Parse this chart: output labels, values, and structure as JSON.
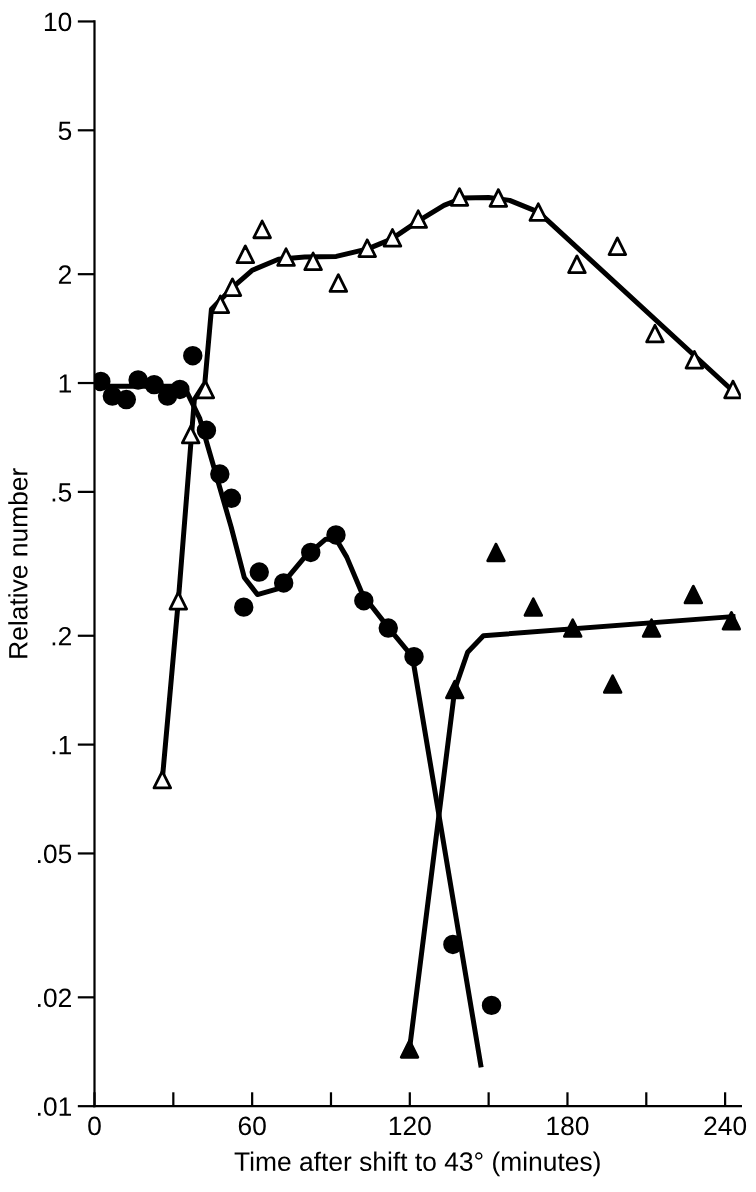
{
  "chart_data": {
    "type": "scatter",
    "xlabel": "Time after shift to 43° (minutes)",
    "ylabel": "Relative number",
    "log": "y",
    "grid": false,
    "xlim": [
      0,
      246
    ],
    "ylim": [
      0.01,
      10
    ],
    "xticks": [
      0,
      {
        "value": 30,
        "label": null
      },
      60,
      {
        "value": 90,
        "label": null
      },
      120,
      {
        "value": 150,
        "label": null
      },
      180,
      {
        "value": 210,
        "label": null
      },
      240
    ],
    "yticks": [
      {
        "value": 0.01,
        "label": ".01"
      },
      {
        "value": 0.02,
        "label": ".02"
      },
      {
        "value": 0.05,
        "label": ".05"
      },
      {
        "value": 0.1,
        "label": ".1"
      },
      {
        "value": 0.2,
        "label": ".2"
      },
      {
        "value": 0.5,
        "label": ".5"
      },
      1,
      2,
      5,
      10
    ],
    "series": [
      {
        "marker": "triangle",
        "color": "#ffffff",
        "x": [
          25.8,
          31.9,
          36.6,
          42.2,
          47.9,
          52.5,
          57.4,
          63.8,
          72.9,
          83.2,
          92.8,
          103.8,
          113.4,
          123.2,
          138.9,
          153.7,
          168.9,
          183.6,
          199,
          213.3,
          228.3,
          243
        ],
        "values": [
          0.08,
          0.25,
          0.72,
          0.96,
          1.65,
          1.84,
          2.27,
          2.66,
          2.23,
          2.17,
          1.89,
          2.36,
          2.52,
          2.84,
          3.27,
          3.25,
          2.97,
          2.13,
          2.39,
          1.37,
          1.16,
          0.96
        ]
      },
      {
        "marker": "circle",
        "color": "#000000",
        "x": [
          2.4,
          6.8,
          12.1,
          16.6,
          22.7,
          27.8,
          32.5,
          37.4,
          42.6,
          47.7,
          52.1,
          56.8,
          62.7,
          72,
          82.3,
          91.9,
          102.5,
          111.8,
          121.6,
          136.4,
          151.1
        ],
        "values": [
          1.01,
          0.92,
          0.9,
          1.02,
          0.99,
          0.92,
          0.96,
          1.19,
          0.74,
          0.56,
          0.48,
          0.24,
          0.3,
          0.28,
          0.34,
          0.38,
          0.25,
          0.21,
          0.175,
          0.028,
          0.019
        ]
      },
      {
        "marker": "triangle",
        "color": "#000000",
        "x": [
          119.9,
          137.1,
          152.8,
          167,
          182,
          197.2,
          212,
          227.9,
          242.4
        ],
        "values": [
          0.0144,
          0.142,
          0.34,
          0.24,
          0.21,
          0.147,
          0.21,
          0.26,
          0.22
        ]
      },
      {
        "type": "line",
        "marker": "none",
        "line_style": "solid",
        "color": "#000000",
        "x": [
          25.8,
          31.9,
          38,
          42,
          44.5,
          48,
          53,
          60,
          70,
          80,
          92,
          104,
          113,
          123,
          133,
          140,
          150,
          158,
          169,
          243
        ],
        "values": [
          0.08,
          0.25,
          0.9,
          1.0,
          1.6,
          1.7,
          1.85,
          2.05,
          2.2,
          2.23,
          2.24,
          2.35,
          2.5,
          2.8,
          3.1,
          3.25,
          3.26,
          3.2,
          2.97,
          0.95
        ]
      },
      {
        "type": "line",
        "marker": "none",
        "line_style": "solid",
        "color": "#000000",
        "x": [
          0,
          30,
          35,
          40,
          45,
          52,
          57,
          62,
          70,
          80,
          88,
          92,
          96,
          102,
          112,
          121,
          147
        ],
        "values": [
          0.98,
          0.98,
          0.95,
          0.8,
          0.6,
          0.4,
          0.29,
          0.26,
          0.27,
          0.33,
          0.37,
          0.37,
          0.33,
          0.26,
          0.21,
          0.175,
          0.013
        ]
      },
      {
        "type": "line",
        "marker": "none",
        "line_style": "solid",
        "color": "#000000",
        "x": [
          119.9,
          137.1,
          142,
          148,
          243
        ],
        "values": [
          0.0144,
          0.142,
          0.18,
          0.2,
          0.226
        ]
      }
    ]
  }
}
